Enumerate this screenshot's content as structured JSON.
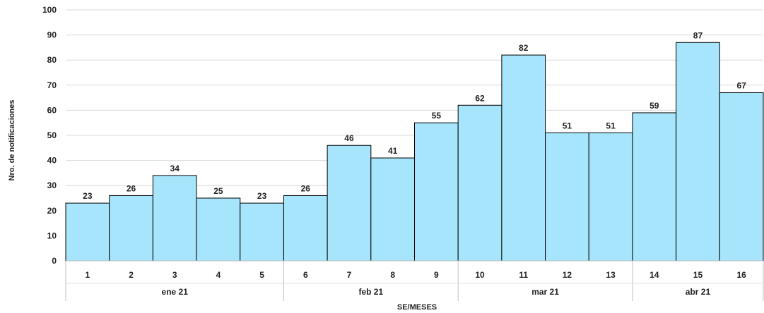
{
  "chart_data": {
    "type": "bar",
    "title": "",
    "xlabel": "SE/MESES",
    "ylabel": "Nro. de notificaciones",
    "ylim": [
      0,
      100
    ],
    "yticks": [
      0,
      10,
      20,
      30,
      40,
      50,
      60,
      70,
      80,
      90,
      100
    ],
    "grid": true,
    "bar_color": "#A6E5FB",
    "bar_edge_color": "#000000",
    "categories": [
      "1",
      "2",
      "3",
      "4",
      "5",
      "6",
      "7",
      "8",
      "9",
      "10",
      "11",
      "12",
      "13",
      "14",
      "15",
      "16"
    ],
    "values": [
      23,
      26,
      34,
      25,
      23,
      26,
      46,
      41,
      55,
      62,
      82,
      51,
      51,
      59,
      87,
      67
    ],
    "groups": [
      {
        "label": "ene 21",
        "start": 0,
        "end": 4
      },
      {
        "label": "feb 21",
        "start": 5,
        "end": 8
      },
      {
        "label": "mar 21",
        "start": 9,
        "end": 12
      },
      {
        "label": "abr 21",
        "start": 13,
        "end": 15
      }
    ]
  }
}
